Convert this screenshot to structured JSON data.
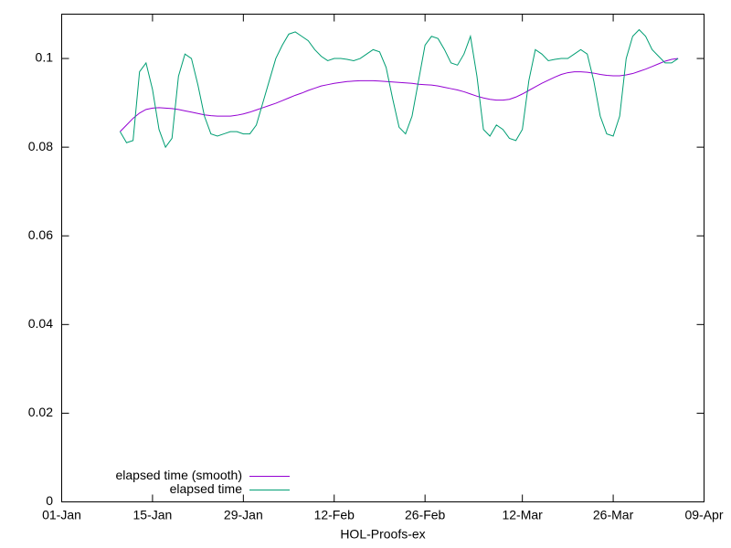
{
  "chart_data": {
    "type": "line",
    "xlabel": "HOL-Proofs-ex",
    "xlim": [
      "01-Jan",
      "09-Apr"
    ],
    "xticks": [
      "01-Jan",
      "15-Jan",
      "29-Jan",
      "12-Feb",
      "26-Feb",
      "12-Mar",
      "26-Mar",
      "09-Apr"
    ],
    "ylim": [
      0,
      0.11
    ],
    "yticks": [
      0,
      0.02,
      0.04,
      0.06,
      0.08,
      0.1
    ],
    "grid": false,
    "legend": "bottom left",
    "x": [
      "10-Jan",
      "11-Jan",
      "12-Jan",
      "13-Jan",
      "14-Jan",
      "15-Jan",
      "16-Jan",
      "17-Jan",
      "18-Jan",
      "19-Jan",
      "20-Jan",
      "21-Jan",
      "22-Jan",
      "23-Jan",
      "24-Jan",
      "25-Jan",
      "26-Jan",
      "27-Jan",
      "28-Jan",
      "29-Jan",
      "30-Jan",
      "31-Jan",
      "01-Feb",
      "02-Feb",
      "03-Feb",
      "04-Feb",
      "05-Feb",
      "06-Feb",
      "07-Feb",
      "08-Feb",
      "09-Feb",
      "10-Feb",
      "11-Feb",
      "12-Feb",
      "13-Feb",
      "14-Feb",
      "15-Feb",
      "16-Feb",
      "17-Feb",
      "18-Feb",
      "19-Feb",
      "20-Feb",
      "21-Feb",
      "22-Feb",
      "23-Feb",
      "24-Feb",
      "25-Feb",
      "26-Feb",
      "27-Feb",
      "28-Feb",
      "29-Feb",
      "01-Mar",
      "02-Mar",
      "03-Mar",
      "04-Mar",
      "05-Mar",
      "06-Mar",
      "07-Mar",
      "08-Mar",
      "09-Mar",
      "10-Mar",
      "11-Mar",
      "12-Mar",
      "13-Mar",
      "14-Mar",
      "15-Mar",
      "16-Mar",
      "17-Mar",
      "18-Mar",
      "19-Mar",
      "20-Mar",
      "21-Mar",
      "22-Mar",
      "23-Mar",
      "24-Mar",
      "25-Mar",
      "26-Mar",
      "27-Mar",
      "28-Mar",
      "29-Mar",
      "30-Mar",
      "31-Mar",
      "01-Apr",
      "02-Apr",
      "03-Apr",
      "04-Apr",
      "05-Apr"
    ],
    "series": [
      {
        "name": "elapsed time (smooth)",
        "color": "#9400d3",
        "values": [
          0.0835,
          0.085,
          0.0865,
          0.0877,
          0.0885,
          0.0888,
          0.0889,
          0.0888,
          0.0887,
          0.0885,
          0.0882,
          0.0879,
          0.0876,
          0.0873,
          0.0871,
          0.087,
          0.087,
          0.087,
          0.0872,
          0.0875,
          0.0879,
          0.0884,
          0.0889,
          0.0894,
          0.0899,
          0.0905,
          0.0911,
          0.0917,
          0.0922,
          0.0928,
          0.0933,
          0.0938,
          0.0941,
          0.0944,
          0.0946,
          0.0948,
          0.0949,
          0.095,
          0.095,
          0.095,
          0.0949,
          0.0948,
          0.0947,
          0.0946,
          0.0945,
          0.0944,
          0.0942,
          0.0941,
          0.094,
          0.0938,
          0.0935,
          0.0932,
          0.0929,
          0.0925,
          0.092,
          0.0915,
          0.0911,
          0.0908,
          0.0906,
          0.0906,
          0.0908,
          0.0913,
          0.092,
          0.0928,
          0.0936,
          0.0944,
          0.0951,
          0.0958,
          0.0964,
          0.0968,
          0.097,
          0.097,
          0.0969,
          0.0967,
          0.0964,
          0.0962,
          0.0961,
          0.0961,
          0.0963,
          0.0966,
          0.0971,
          0.0976,
          0.0982,
          0.0988,
          0.0994,
          0.0998,
          0.1
        ]
      },
      {
        "name": "elapsed time",
        "color": "#009e73",
        "values": [
          0.0835,
          0.081,
          0.0815,
          0.097,
          0.099,
          0.093,
          0.084,
          0.08,
          0.082,
          0.096,
          0.101,
          0.1,
          0.094,
          0.087,
          0.083,
          0.0825,
          0.083,
          0.0835,
          0.0835,
          0.083,
          0.083,
          0.085,
          0.09,
          0.095,
          0.1,
          0.103,
          0.1055,
          0.106,
          0.105,
          0.104,
          0.102,
          0.1005,
          0.0995,
          0.1,
          0.1,
          0.0998,
          0.0995,
          0.1,
          0.101,
          0.102,
          0.1015,
          0.098,
          0.091,
          0.0845,
          0.083,
          0.087,
          0.095,
          0.103,
          0.105,
          0.1045,
          0.102,
          0.099,
          0.0985,
          0.101,
          0.105,
          0.096,
          0.084,
          0.0825,
          0.085,
          0.084,
          0.082,
          0.0815,
          0.084,
          0.095,
          0.102,
          0.101,
          0.0995,
          0.0998,
          0.1,
          0.1,
          0.101,
          0.102,
          0.101,
          0.095,
          0.087,
          0.083,
          0.0825,
          0.087,
          0.1,
          0.105,
          0.1065,
          0.105,
          0.102,
          0.1005,
          0.099,
          0.099,
          0.1
        ]
      }
    ]
  }
}
